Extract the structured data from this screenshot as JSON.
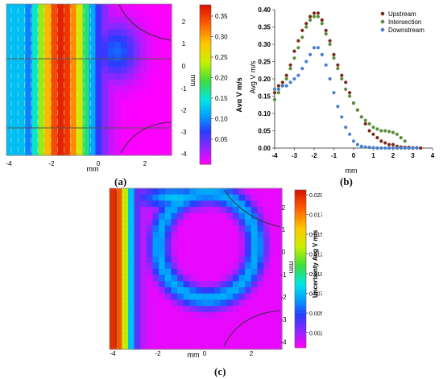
{
  "panel_a": {
    "caption": "(a)",
    "xlabel": "mm",
    "ylabel": "mm",
    "xticks": [
      "-4",
      "-2",
      "0",
      "2"
    ],
    "yticks": [
      "2",
      "1",
      "0",
      "-1",
      "-2",
      "-3",
      "-4"
    ],
    "colorbar_label": "Avg V m/s",
    "colorbar_ticks": [
      "0.35",
      "0.30",
      "0.25",
      "0.20",
      "0.15",
      "0.10",
      "0.05"
    ]
  },
  "panel_b": {
    "caption": "(b)",
    "chart_data": {
      "type": "scatter",
      "xlabel": "mm",
      "ylabel": "Avg V  m/s",
      "xlim": [
        -4,
        4
      ],
      "ylim": [
        0,
        0.4
      ],
      "xticks": [
        "-4",
        "-3",
        "-2",
        "-1",
        "0",
        "1",
        "2",
        "3",
        "4"
      ],
      "yticks": [
        "0.00",
        "0.05",
        "0.10",
        "0.15",
        "0.20",
        "0.25",
        "0.30",
        "0.35",
        "0.40"
      ],
      "legend_position": "top-right",
      "series": [
        {
          "name": "Upstream",
          "color": "#7b2a18",
          "x": [
            -4.0,
            -3.8,
            -3.6,
            -3.4,
            -3.2,
            -3.0,
            -2.8,
            -2.6,
            -2.4,
            -2.2,
            -2.0,
            -1.8,
            -1.6,
            -1.4,
            -1.2,
            -1.0,
            -0.8,
            -0.6,
            -0.4,
            -0.2,
            0.0,
            0.2,
            0.4,
            0.6,
            0.8,
            1.0,
            1.2,
            1.4,
            1.6,
            1.8,
            2.0,
            2.2,
            2.4,
            2.6,
            2.8,
            3.0,
            3.2,
            3.4
          ],
          "y": [
            0.16,
            0.18,
            0.19,
            0.21,
            0.24,
            0.28,
            0.31,
            0.34,
            0.36,
            0.38,
            0.39,
            0.39,
            0.37,
            0.34,
            0.31,
            0.27,
            0.24,
            0.21,
            0.19,
            0.16,
            0.13,
            0.11,
            0.09,
            0.07,
            0.05,
            0.04,
            0.03,
            0.02,
            0.015,
            0.01,
            0.01,
            0.005,
            0.003,
            0.002,
            0.002,
            0.001,
            0.001,
            0.0
          ]
        },
        {
          "name": "Intersection",
          "color": "#5a8f3a",
          "x": [
            -4.0,
            -3.8,
            -3.6,
            -3.4,
            -3.2,
            -3.0,
            -2.8,
            -2.6,
            -2.4,
            -2.2,
            -2.0,
            -1.8,
            -1.6,
            -1.4,
            -1.2,
            -1.0,
            -0.8,
            -0.6,
            -0.4,
            -0.2,
            0.0,
            0.2,
            0.4,
            0.6,
            0.8,
            1.0,
            1.2,
            1.4,
            1.6,
            1.8,
            2.0,
            2.2,
            2.4,
            2.6,
            2.8
          ],
          "y": [
            0.14,
            0.16,
            0.18,
            0.2,
            0.23,
            0.26,
            0.29,
            0.32,
            0.35,
            0.37,
            0.38,
            0.38,
            0.36,
            0.33,
            0.3,
            0.26,
            0.23,
            0.2,
            0.17,
            0.15,
            0.13,
            0.11,
            0.09,
            0.08,
            0.07,
            0.06,
            0.055,
            0.05,
            0.05,
            0.048,
            0.045,
            0.04,
            0.03,
            0.02,
            0.0
          ]
        },
        {
          "name": "Downstream",
          "color": "#4a7fd0",
          "x": [
            -4.0,
            -3.8,
            -3.6,
            -3.4,
            -3.2,
            -3.0,
            -2.8,
            -2.6,
            -2.4,
            -2.2,
            -2.0,
            -1.8,
            -1.6,
            -1.4,
            -1.2,
            -1.0,
            -0.8,
            -0.6,
            -0.4,
            -0.2,
            0.0,
            0.2,
            0.4,
            0.6,
            0.8,
            1.0,
            1.2,
            1.4,
            1.6,
            1.8,
            2.0,
            2.2,
            2.4,
            2.6,
            2.8,
            3.0,
            3.2
          ],
          "y": [
            0.17,
            0.17,
            0.18,
            0.18,
            0.19,
            0.2,
            0.21,
            0.23,
            0.25,
            0.27,
            0.29,
            0.29,
            0.27,
            0.24,
            0.2,
            0.16,
            0.12,
            0.09,
            0.06,
            0.04,
            0.02,
            0.01,
            0.005,
            0.003,
            0.002,
            0.001,
            0.0,
            0.0,
            0.0,
            0.0,
            0.0,
            0.0,
            0.0,
            0.0,
            0.0,
            0.0,
            0.0
          ]
        }
      ]
    }
  },
  "panel_c": {
    "caption": "(c)",
    "xlabel": "mm",
    "ylabel": "mm",
    "xticks": [
      "-4",
      "-2",
      "0",
      "2"
    ],
    "yticks": [
      "2",
      "1",
      "0",
      "-1",
      "-2",
      "-3",
      "-4"
    ],
    "colorbar_label": "Uncertainty Avg V m/s",
    "colorbar_ticks": [
      "0.0200",
      "0.0175",
      "0.0150",
      "0.0125",
      "0.0100",
      "0.0075",
      "0.0050",
      "0.0025"
    ]
  }
}
